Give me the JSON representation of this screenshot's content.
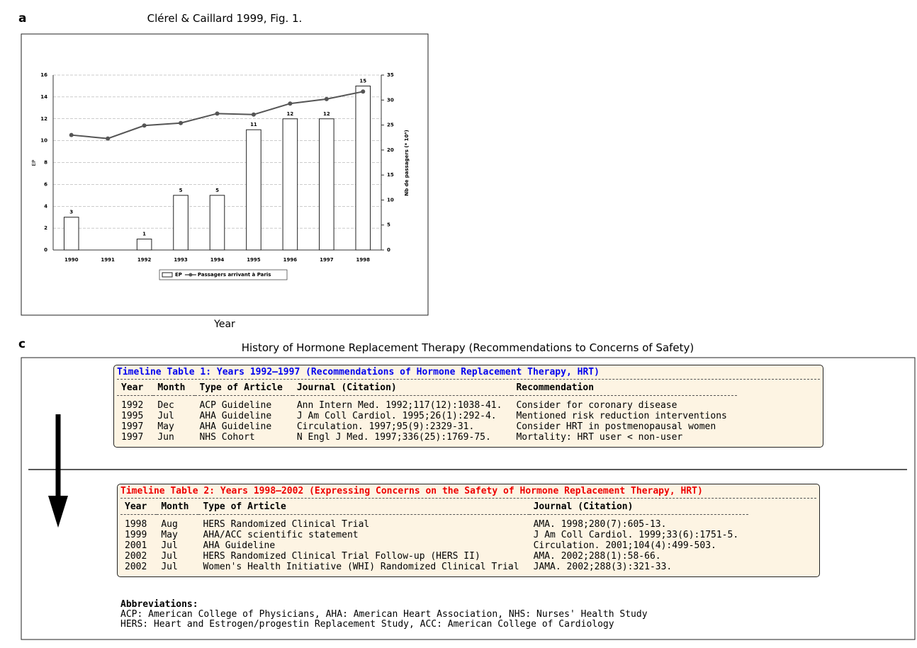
{
  "panel_a_label": "a",
  "panel_c_label": "c",
  "chart_data": {
    "type": "bar",
    "title": "Clérel & Caillard 1999, Fig. 1.",
    "x_label": "Year",
    "y_label": "EP",
    "y2_label": "Nb de passagers (* 10⁶)",
    "categories": [
      "1990",
      "1991",
      "1992",
      "1993",
      "1994",
      "1995",
      "1996",
      "1997",
      "1998"
    ],
    "series": [
      {
        "name": "EP",
        "type": "bar",
        "color": "#ffffff",
        "values": [
          3,
          null,
          1,
          5,
          5,
          11,
          12,
          12,
          15
        ]
      },
      {
        "name": "Passagers arrivant à Paris",
        "type": "line",
        "axis": "y2",
        "color": "#555555",
        "values": [
          23,
          22.3,
          24.9,
          25.4,
          27.3,
          27.1,
          29.3,
          30.2,
          31.7
        ]
      }
    ],
    "ylim": [
      0,
      16
    ],
    "yticks": [
      0,
      2,
      4,
      6,
      8,
      10,
      12,
      14,
      16
    ],
    "y2lim": [
      0,
      35
    ],
    "y2ticks": [
      0,
      5,
      10,
      15,
      20,
      25,
      30,
      35
    ],
    "grid": true
  },
  "timeline": {
    "title": "History of Hormone Replacement Therapy (Recommendations to Concerns of Safety)",
    "tables": [
      {
        "title": "Timeline Table 1: Years 1992–1997 (Recommendations of Hormone Replacement Therapy, HRT)",
        "color": "#0000ee",
        "columns": [
          "Year",
          "Month",
          "Type of Article",
          "Journal (Citation)",
          "Recommendation"
        ],
        "rows": [
          [
            "1992",
            "Dec",
            "ACP Guideline",
            "Ann Intern Med. 1992;117(12):1038-41.",
            "Consider for coronary disease"
          ],
          [
            "1995",
            "Jul",
            "AHA Guideline",
            "J Am Coll Cardiol. 1995;26(1):292-4.",
            "Mentioned risk reduction interventions"
          ],
          [
            "1997",
            "May",
            "AHA Guideline",
            "Circulation. 1997;95(9):2329-31.",
            "Consider HRT in postmenopausal women"
          ],
          [
            "1997",
            "Jun",
            "NHS Cohort",
            "N Engl J Med. 1997;336(25):1769-75.",
            "Mortality: HRT user < non-user"
          ]
        ]
      },
      {
        "title": "Timeline Table 2: Years 1998–2002 (Expressing Concerns on the Safety of Hormone Replacement Therapy, HRT)",
        "color": "#ee0000",
        "columns": [
          "Year",
          "Month",
          "Type of Article",
          "Journal (Citation)"
        ],
        "rows": [
          [
            "1998",
            "Aug",
            "HERS Randomized Clinical Trial",
            "AMA. 1998;280(7):605-13."
          ],
          [
            "1999",
            "May",
            "AHA/ACC scientific statement",
            "J Am Coll Cardiol. 1999;33(6):1751-5."
          ],
          [
            "2001",
            "Jul",
            "AHA Guideline",
            "Circulation. 2001;104(4):499-503."
          ],
          [
            "2002",
            "Jul",
            "HERS Randomized Clinical Trial Follow-up (HERS II)",
            "AMA. 2002;288(1):58-66."
          ],
          [
            "2002",
            "Jul",
            "Women's Health Initiative (WHI) Randomized Clinical Trial",
            "JAMA. 2002;288(3):321-33."
          ]
        ]
      }
    ],
    "abbreviations": {
      "title": "Abbreviations:",
      "lines": [
        "ACP: American College of Physicians, AHA: American Heart Association, NHS: Nurses' Health Study",
        "HERS: Heart and Estrogen/progestin Replacement Study, ACC: American College of Cardiology"
      ]
    }
  }
}
